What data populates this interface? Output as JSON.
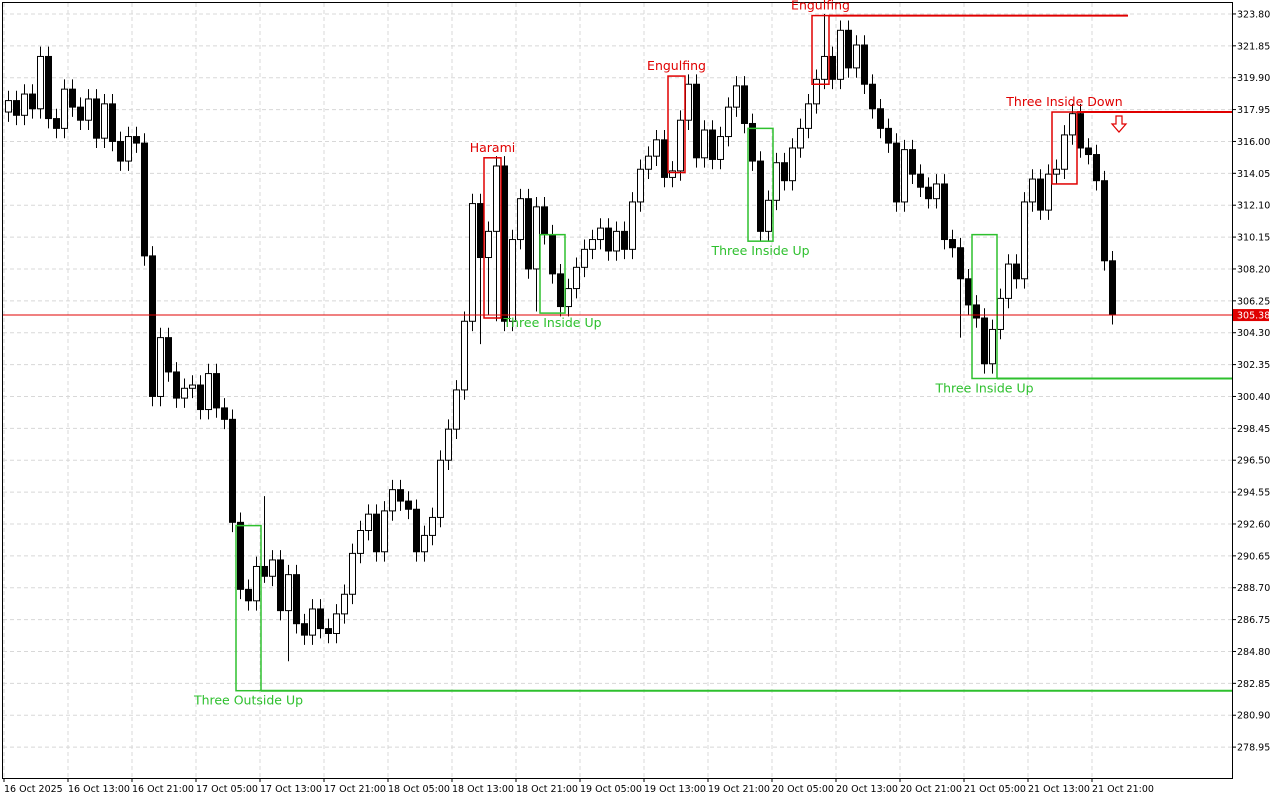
{
  "chart_data": {
    "type": "candlestick",
    "categories": [
      "16 Oct 2025",
      null,
      null,
      null,
      null,
      null,
      null,
      null,
      "16 Oct 13:00",
      null,
      null,
      null,
      null,
      null,
      null,
      null,
      "16 Oct 21:00",
      null,
      null,
      null,
      null,
      null,
      null,
      null,
      "17 Oct 05:00",
      null,
      null,
      null,
      null,
      null,
      null,
      null,
      "17 Oct 13:00",
      null,
      null,
      null,
      null,
      null,
      null,
      null,
      "17 Oct 21:00",
      null,
      null,
      null,
      null,
      null,
      null,
      null,
      "18 Oct 05:00",
      null,
      null,
      null,
      null,
      null,
      null,
      null,
      "18 Oct 13:00",
      null,
      null,
      null,
      null,
      null,
      null,
      null,
      "18 Oct 21:00",
      null,
      null,
      null,
      null,
      null,
      null,
      null,
      "19 Oct 05:00",
      null,
      null,
      null,
      null,
      null,
      null,
      null,
      "19 Oct 13:00",
      null,
      null,
      null,
      null,
      null,
      null,
      null,
      "19 Oct 21:00",
      null,
      null,
      null,
      null,
      null,
      null,
      null,
      "20 Oct 05:00",
      null,
      null,
      null,
      null,
      null,
      null,
      null,
      "20 Oct 13:00",
      null,
      null,
      null,
      null,
      null,
      null,
      null,
      "20 Oct 21:00",
      null,
      null,
      null,
      null,
      null,
      null,
      null,
      "21 Oct 05:00",
      null,
      null,
      null,
      null,
      null,
      null,
      null,
      "21 Oct 13:00",
      null,
      null,
      null,
      null,
      null,
      null,
      null,
      "21 Oct 21:00",
      null,
      null
    ],
    "candles": [
      [
        317.8,
        319.1,
        317.2,
        318.5
      ],
      [
        318.5,
        319.1,
        317.0,
        317.6
      ],
      [
        317.6,
        319.5,
        317.0,
        318.9
      ],
      [
        318.9,
        319.5,
        317.4,
        318.0
      ],
      [
        318.0,
        321.8,
        317.4,
        321.2
      ],
      [
        321.2,
        321.8,
        316.8,
        317.4
      ],
      [
        317.4,
        318.0,
        316.2,
        316.8
      ],
      [
        316.8,
        319.8,
        316.2,
        319.2
      ],
      [
        319.2,
        319.8,
        317.5,
        318.1
      ],
      [
        318.1,
        318.7,
        316.7,
        317.3
      ],
      [
        317.3,
        319.2,
        316.7,
        318.6
      ],
      [
        318.6,
        319.2,
        315.6,
        316.2
      ],
      [
        316.2,
        318.9,
        315.6,
        318.3
      ],
      [
        318.3,
        318.9,
        315.4,
        316.0
      ],
      [
        316.0,
        316.6,
        314.2,
        314.8
      ],
      [
        314.8,
        316.9,
        314.2,
        316.3
      ],
      [
        316.3,
        316.9,
        315.3,
        315.9
      ],
      [
        315.9,
        316.5,
        308.4,
        309.0
      ],
      [
        309.0,
        309.6,
        299.8,
        300.4
      ],
      [
        300.4,
        304.6,
        299.8,
        304.0
      ],
      [
        304.0,
        304.6,
        301.3,
        301.9
      ],
      [
        301.9,
        302.5,
        299.7,
        300.3
      ],
      [
        300.3,
        301.5,
        299.7,
        300.9
      ],
      [
        300.9,
        301.7,
        300.3,
        301.1
      ],
      [
        301.1,
        301.7,
        299.0,
        299.6
      ],
      [
        299.6,
        302.4,
        299.0,
        301.8
      ],
      [
        301.8,
        302.4,
        299.1,
        299.7
      ],
      [
        299.7,
        300.3,
        298.4,
        299.0
      ],
      [
        299.0,
        299.6,
        292.1,
        292.7
      ],
      [
        292.7,
        293.3,
        288.0,
        288.6
      ],
      [
        288.6,
        289.2,
        287.3,
        287.9
      ],
      [
        287.9,
        290.6,
        287.3,
        290.0
      ],
      [
        290.0,
        294.3,
        289.0,
        289.4
      ],
      [
        289.4,
        291.0,
        288.8,
        290.4
      ],
      [
        290.4,
        291.0,
        286.7,
        287.3
      ],
      [
        287.3,
        290.1,
        284.2,
        289.5
      ],
      [
        289.5,
        290.1,
        285.9,
        286.5
      ],
      [
        286.5,
        287.1,
        285.2,
        285.8
      ],
      [
        285.8,
        288.0,
        285.2,
        287.4
      ],
      [
        287.4,
        288.0,
        285.6,
        286.2
      ],
      [
        286.2,
        286.8,
        285.3,
        285.9
      ],
      [
        285.9,
        287.7,
        285.3,
        287.1
      ],
      [
        287.1,
        288.9,
        286.5,
        288.3
      ],
      [
        288.3,
        291.4,
        287.7,
        290.8
      ],
      [
        290.8,
        292.8,
        290.2,
        292.2
      ],
      [
        292.2,
        293.8,
        291.6,
        293.2
      ],
      [
        293.2,
        293.8,
        290.3,
        290.9
      ],
      [
        290.9,
        294.0,
        290.3,
        293.4
      ],
      [
        293.4,
        295.3,
        292.8,
        294.7
      ],
      [
        294.7,
        295.3,
        293.4,
        294.0
      ],
      [
        294.0,
        294.6,
        292.9,
        293.5
      ],
      [
        293.5,
        294.1,
        290.3,
        290.9
      ],
      [
        290.9,
        292.5,
        290.3,
        291.9
      ],
      [
        291.9,
        293.6,
        291.3,
        293.0
      ],
      [
        293.0,
        297.1,
        292.4,
        296.5
      ],
      [
        296.5,
        299.0,
        295.9,
        298.4
      ],
      [
        298.4,
        301.4,
        297.8,
        300.8
      ],
      [
        300.8,
        305.6,
        300.2,
        305.0
      ],
      [
        305.0,
        312.8,
        304.4,
        312.2
      ],
      [
        312.2,
        312.8,
        303.6,
        308.9
      ],
      [
        308.9,
        311.1,
        305.4,
        310.5
      ],
      [
        310.5,
        315.1,
        305.0,
        314.5
      ],
      [
        314.5,
        315.1,
        304.4,
        305.0
      ],
      [
        305.0,
        310.6,
        304.4,
        310.0
      ],
      [
        310.0,
        313.1,
        309.4,
        312.5
      ],
      [
        312.5,
        313.1,
        307.6,
        308.2
      ],
      [
        308.2,
        312.6,
        305.6,
        312.0
      ],
      [
        312.0,
        312.6,
        309.7,
        310.3
      ],
      [
        310.3,
        310.9,
        307.3,
        307.9
      ],
      [
        307.9,
        308.5,
        305.3,
        305.9
      ],
      [
        305.9,
        307.6,
        305.3,
        307.0
      ],
      [
        307.0,
        308.9,
        306.4,
        308.3
      ],
      [
        308.3,
        310.0,
        307.7,
        309.4
      ],
      [
        309.4,
        310.6,
        308.8,
        310.0
      ],
      [
        310.0,
        311.3,
        309.4,
        310.7
      ],
      [
        310.7,
        311.3,
        308.7,
        309.3
      ],
      [
        309.3,
        311.1,
        308.7,
        310.5
      ],
      [
        310.5,
        311.1,
        308.8,
        309.4
      ],
      [
        309.4,
        312.9,
        308.8,
        312.3
      ],
      [
        312.3,
        314.9,
        311.7,
        314.3
      ],
      [
        314.3,
        315.7,
        313.7,
        315.1
      ],
      [
        315.1,
        316.7,
        314.5,
        316.1
      ],
      [
        316.1,
        316.7,
        313.2,
        313.8
      ],
      [
        313.8,
        314.8,
        313.2,
        314.2
      ],
      [
        314.2,
        317.9,
        313.6,
        317.3
      ],
      [
        317.3,
        320.1,
        316.7,
        319.5
      ],
      [
        319.5,
        320.1,
        314.4,
        315.0
      ],
      [
        315.0,
        317.3,
        314.4,
        316.7
      ],
      [
        316.7,
        317.3,
        314.3,
        314.9
      ],
      [
        314.9,
        316.9,
        314.3,
        316.3
      ],
      [
        316.3,
        318.7,
        315.7,
        318.1
      ],
      [
        318.1,
        320.0,
        317.5,
        319.4
      ],
      [
        319.4,
        320.0,
        316.5,
        317.1
      ],
      [
        317.1,
        317.7,
        314.2,
        314.8
      ],
      [
        314.8,
        315.4,
        309.9,
        310.5
      ],
      [
        310.5,
        313.0,
        309.9,
        312.4
      ],
      [
        312.4,
        315.3,
        311.8,
        314.7
      ],
      [
        314.7,
        315.3,
        313.0,
        313.6
      ],
      [
        313.6,
        316.2,
        313.0,
        315.6
      ],
      [
        315.6,
        317.4,
        315.0,
        316.8
      ],
      [
        316.8,
        318.9,
        316.2,
        318.3
      ],
      [
        318.3,
        320.4,
        317.7,
        319.8
      ],
      [
        319.8,
        323.8,
        319.2,
        321.2
      ],
      [
        321.2,
        321.8,
        319.2,
        319.8
      ],
      [
        319.8,
        323.4,
        319.2,
        322.8
      ],
      [
        322.8,
        323.4,
        319.9,
        320.5
      ],
      [
        320.5,
        322.5,
        319.9,
        321.9
      ],
      [
        321.9,
        322.5,
        318.9,
        319.5
      ],
      [
        319.5,
        320.1,
        317.4,
        318.0
      ],
      [
        318.0,
        318.6,
        316.2,
        316.8
      ],
      [
        316.8,
        317.4,
        315.3,
        315.9
      ],
      [
        315.9,
        316.5,
        311.7,
        312.3
      ],
      [
        312.3,
        316.1,
        311.7,
        315.5
      ],
      [
        315.5,
        316.1,
        313.4,
        314.0
      ],
      [
        314.0,
        314.6,
        312.6,
        313.2
      ],
      [
        313.2,
        313.8,
        311.9,
        312.5
      ],
      [
        312.5,
        314.0,
        311.9,
        313.4
      ],
      [
        313.4,
        314.0,
        309.4,
        310.0
      ],
      [
        310.0,
        310.6,
        308.9,
        309.5
      ],
      [
        309.5,
        310.1,
        304.0,
        307.6
      ],
      [
        307.6,
        308.2,
        305.4,
        306.0
      ],
      [
        306.0,
        306.6,
        304.6,
        305.2
      ],
      [
        305.2,
        305.8,
        301.8,
        302.4
      ],
      [
        302.4,
        305.1,
        301.8,
        304.5
      ],
      [
        304.5,
        307.0,
        303.9,
        306.4
      ],
      [
        306.4,
        309.1,
        305.8,
        308.5
      ],
      [
        308.5,
        309.1,
        307.0,
        307.6
      ],
      [
        307.6,
        312.9,
        307.0,
        312.3
      ],
      [
        312.3,
        314.3,
        311.7,
        313.7
      ],
      [
        313.7,
        314.3,
        311.2,
        311.8
      ],
      [
        311.8,
        314.6,
        311.2,
        314.0
      ],
      [
        314.0,
        314.9,
        313.4,
        314.3
      ],
      [
        314.3,
        317.0,
        313.7,
        316.4
      ],
      [
        316.4,
        318.3,
        315.8,
        317.7
      ],
      [
        317.7,
        318.3,
        315.0,
        315.6
      ],
      [
        315.6,
        316.2,
        314.6,
        315.2
      ],
      [
        315.2,
        315.8,
        313.0,
        313.6
      ],
      [
        313.6,
        314.2,
        308.1,
        308.7
      ],
      [
        308.7,
        309.3,
        304.8,
        305.4
      ]
    ],
    "up_color": "#ffffff",
    "down_color": "#000000",
    "outline_color": "#000000",
    "ylim": [
      277.06,
      324.47
    ],
    "yticks": [
      {
        "value": 323.8,
        "label": "323.80"
      },
      {
        "value": 321.85,
        "label": "321.85"
      },
      {
        "value": 319.9,
        "label": "319.90"
      },
      {
        "value": 317.95,
        "label": "317.95"
      },
      {
        "value": 316.0,
        "label": "316.00"
      },
      {
        "value": 314.05,
        "label": "314.05"
      },
      {
        "value": 312.1,
        "label": "312.10"
      },
      {
        "value": 310.15,
        "label": "310.15"
      },
      {
        "value": 308.2,
        "label": "308.20"
      },
      {
        "value": 306.25,
        "label": "306.25"
      },
      {
        "value": 304.3,
        "label": "304.30"
      },
      {
        "value": 302.35,
        "label": "302.35"
      },
      {
        "value": 300.4,
        "label": "300.40"
      },
      {
        "value": 298.45,
        "label": "298.45"
      },
      {
        "value": 296.5,
        "label": "296.50"
      },
      {
        "value": 294.55,
        "label": "294.55"
      },
      {
        "value": 292.6,
        "label": "292.60"
      },
      {
        "value": 290.65,
        "label": "290.65"
      },
      {
        "value": 288.7,
        "label": "288.70"
      },
      {
        "value": 286.75,
        "label": "286.75"
      },
      {
        "value": 284.8,
        "label": "284.80"
      },
      {
        "value": 282.85,
        "label": "282.85"
      },
      {
        "value": 280.9,
        "label": "280.90"
      },
      {
        "value": 278.95,
        "label": "278.95"
      }
    ],
    "grid": true,
    "current_price": 305.38,
    "current_price_color": "#e00000",
    "annotations": [
      {
        "text": "Three Outside Up",
        "color": "#2ec02e",
        "start": 29,
        "end": 31,
        "low": 282.4,
        "high": 292.5,
        "level": 282.4,
        "label_side": "below"
      },
      {
        "text": "Harami",
        "color": "#e00000",
        "start": 60,
        "end": 61,
        "low": 305.2,
        "high": 315.0,
        "label_side": "above"
      },
      {
        "text": "Three Inside Up",
        "color": "#2ec02e",
        "start": 67,
        "end": 69,
        "low": 305.5,
        "high": 310.3,
        "label_side": "below"
      },
      {
        "text": "Engulfing",
        "color": "#e00000",
        "start": 83,
        "end": 84,
        "low": 314.1,
        "high": 320.0,
        "label_side": "above"
      },
      {
        "text": "Three Inside Up",
        "color": "#2ec02e",
        "start": 93,
        "end": 95,
        "low": 309.9,
        "high": 316.8,
        "label_side": "below"
      },
      {
        "text": "Engulfing",
        "color": "#e00000",
        "start": 101,
        "end": 102,
        "low": 319.5,
        "high": 323.7,
        "level": 323.7,
        "level_end": 140,
        "label_side": "above"
      },
      {
        "text": "Three Inside Up",
        "color": "#2ec02e",
        "start": 121,
        "end": 123,
        "low": 301.5,
        "high": 310.3,
        "level": 301.5,
        "label_side": "below"
      },
      {
        "text": "Three Inside Down",
        "color": "#e00000",
        "start": 131,
        "end": 133,
        "low": 313.4,
        "high": 317.8,
        "level": 317.8,
        "label_side": "above",
        "arrow": "down"
      }
    ]
  }
}
